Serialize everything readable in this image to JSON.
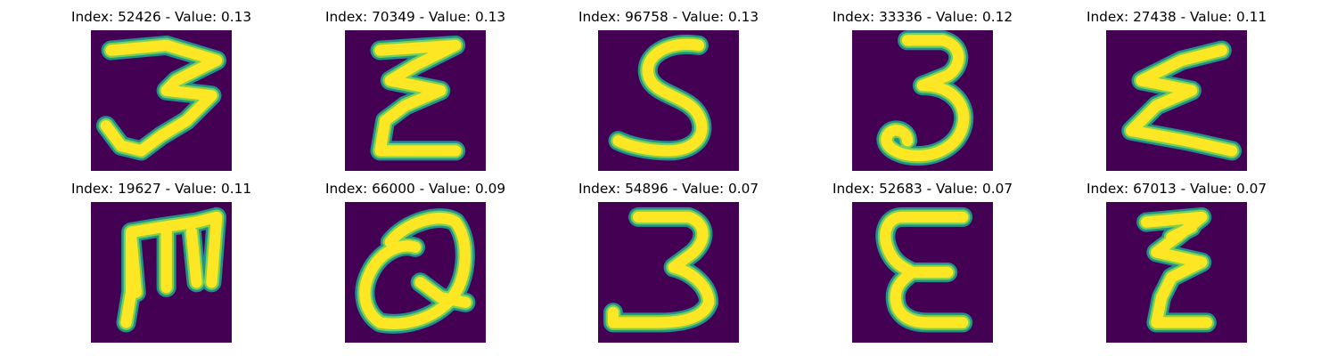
{
  "panels": [
    {
      "title": "Index: 52426 - Value: 0.13",
      "index": 52426,
      "value": 0.13,
      "glyph": "3"
    },
    {
      "title": "Index: 70349 - Value: 0.13",
      "index": 70349,
      "value": 0.13,
      "glyph": "3"
    },
    {
      "title": "Index: 96758 - Value: 0.13",
      "index": 96758,
      "value": 0.13,
      "glyph": "S"
    },
    {
      "title": "Index: 33336 - Value: 0.12",
      "index": 33336,
      "value": 0.12,
      "glyph": "3"
    },
    {
      "title": "Index: 27438 - Value: 0.11",
      "index": 27438,
      "value": 0.11,
      "glyph": "Σ"
    },
    {
      "title": "Index: 19627 - Value: 0.11",
      "index": 19627,
      "value": 0.11,
      "glyph": "m"
    },
    {
      "title": "Index: 66000 - Value: 0.09",
      "index": 66000,
      "value": 0.09,
      "glyph": "Q"
    },
    {
      "title": "Index: 54896 - Value: 0.07",
      "index": 54896,
      "value": 0.07,
      "glyph": "3"
    },
    {
      "title": "Index: 52683 - Value: 0.07",
      "index": 52683,
      "value": 0.07,
      "glyph": "E"
    },
    {
      "title": "Index: 67013 - Value: 0.07",
      "index": 67013,
      "value": 0.07,
      "glyph": "z"
    }
  ],
  "colors": {
    "background": "#440154",
    "low": "#21918c",
    "mid": "#7ad151",
    "high": "#fde725"
  }
}
